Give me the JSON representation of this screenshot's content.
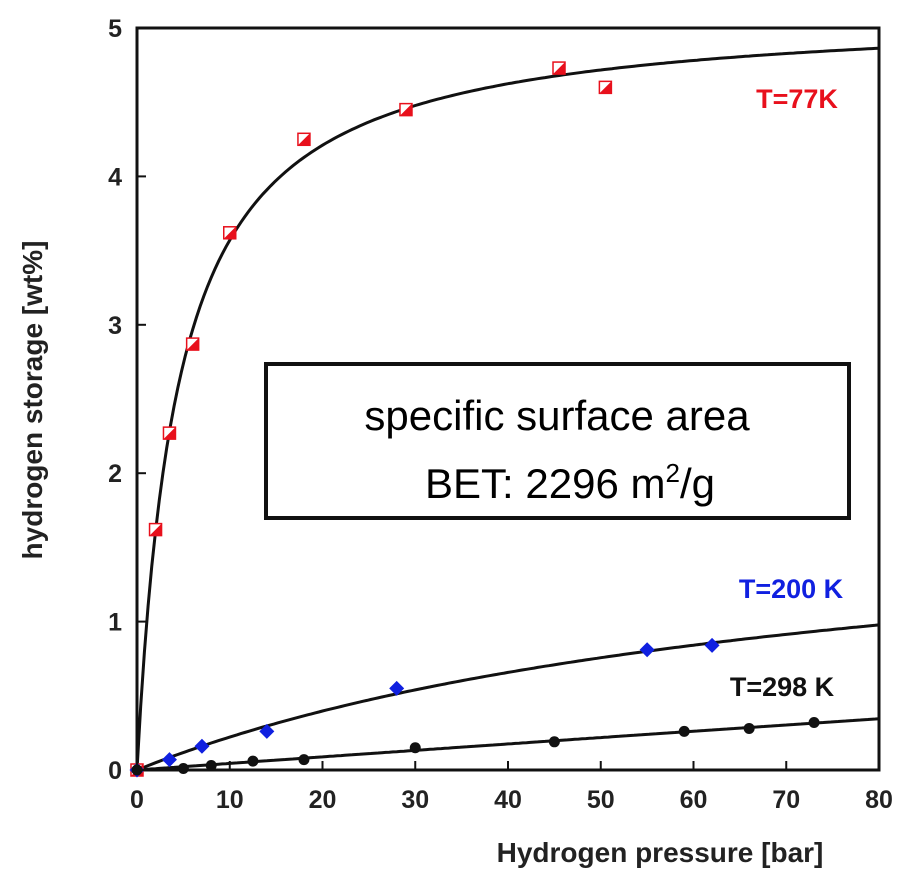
{
  "chart_data": {
    "type": "scatter",
    "xlabel": "Hydrogen pressure [bar]",
    "ylabel": "hydrogen storage [wt%]",
    "xlim": [
      0,
      80
    ],
    "ylim": [
      0,
      5
    ],
    "x_ticks": [
      "0",
      "10",
      "20",
      "30",
      "40",
      "50",
      "60",
      "70",
      "80"
    ],
    "y_ticks": [
      "0",
      "1",
      "2",
      "3",
      "4",
      "5"
    ],
    "grid": false,
    "annotation": {
      "line1": "specific surface area",
      "line2_prefix": "BET: 2296 m",
      "line2_sup": "2",
      "line2_suffix": "/g"
    },
    "series": [
      {
        "name": "T=77K",
        "color": "#e8101c",
        "marker": "half-filled-square",
        "points": [
          [
            0,
            0
          ],
          [
            2,
            1.62
          ],
          [
            3.5,
            2.27
          ],
          [
            6,
            2.87
          ],
          [
            10,
            3.62
          ],
          [
            18,
            4.25
          ],
          [
            29,
            4.45
          ],
          [
            45.5,
            4.73
          ],
          [
            50.5,
            4.6
          ]
        ],
        "fit_curve": true
      },
      {
        "name": "T=200 K",
        "color": "#1020e0",
        "marker": "diamond",
        "points": [
          [
            0,
            0
          ],
          [
            3.5,
            0.07
          ],
          [
            7,
            0.16
          ],
          [
            14,
            0.26
          ],
          [
            28,
            0.55
          ],
          [
            55,
            0.81
          ],
          [
            62,
            0.84
          ]
        ],
        "fit_curve": true
      },
      {
        "name": "T=298 K",
        "color": "#111111",
        "marker": "circle",
        "points": [
          [
            0,
            0
          ],
          [
            5,
            0.01
          ],
          [
            8,
            0.03
          ],
          [
            12.5,
            0.06
          ],
          [
            18,
            0.07
          ],
          [
            30,
            0.15
          ],
          [
            45,
            0.19
          ],
          [
            59,
            0.26
          ],
          [
            66,
            0.28
          ],
          [
            73,
            0.32
          ]
        ],
        "fit_curve": true
      }
    ]
  }
}
